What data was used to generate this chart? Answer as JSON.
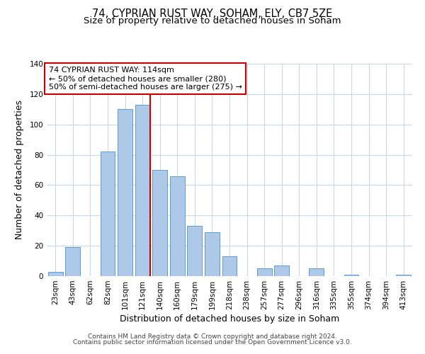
{
  "title": "74, CYPRIAN RUST WAY, SOHAM, ELY, CB7 5ZE",
  "subtitle": "Size of property relative to detached houses in Soham",
  "xlabel": "Distribution of detached houses by size in Soham",
  "ylabel": "Number of detached properties",
  "bar_labels": [
    "23sqm",
    "43sqm",
    "62sqm",
    "82sqm",
    "101sqm",
    "121sqm",
    "140sqm",
    "160sqm",
    "179sqm",
    "199sqm",
    "218sqm",
    "238sqm",
    "257sqm",
    "277sqm",
    "296sqm",
    "316sqm",
    "335sqm",
    "355sqm",
    "374sqm",
    "394sqm",
    "413sqm"
  ],
  "bar_values": [
    3,
    19,
    0,
    82,
    110,
    113,
    70,
    66,
    33,
    29,
    13,
    0,
    5,
    7,
    0,
    5,
    0,
    1,
    0,
    0,
    1
  ],
  "bar_color": "#aec9e8",
  "bar_edge_color": "#5b9bd5",
  "vline_x": 5.43,
  "vline_color": "#cc0000",
  "annotation_title": "74 CYPRIAN RUST WAY: 114sqm",
  "annotation_line1": "← 50% of detached houses are smaller (280)",
  "annotation_line2": "50% of semi-detached houses are larger (275) →",
  "annotation_box_color": "#ffffff",
  "annotation_box_edge_color": "#cc0000",
  "ylim": [
    0,
    140
  ],
  "yticks": [
    0,
    20,
    40,
    60,
    80,
    100,
    120,
    140
  ],
  "footer1": "Contains HM Land Registry data © Crown copyright and database right 2024.",
  "footer2": "Contains public sector information licensed under the Open Government Licence v3.0.",
  "bg_color": "#ffffff",
  "grid_color": "#c8d8ea",
  "title_fontsize": 10.5,
  "subtitle_fontsize": 9.5,
  "axis_label_fontsize": 9,
  "tick_fontsize": 7.5,
  "annotation_fontsize": 8,
  "footer_fontsize": 6.5
}
